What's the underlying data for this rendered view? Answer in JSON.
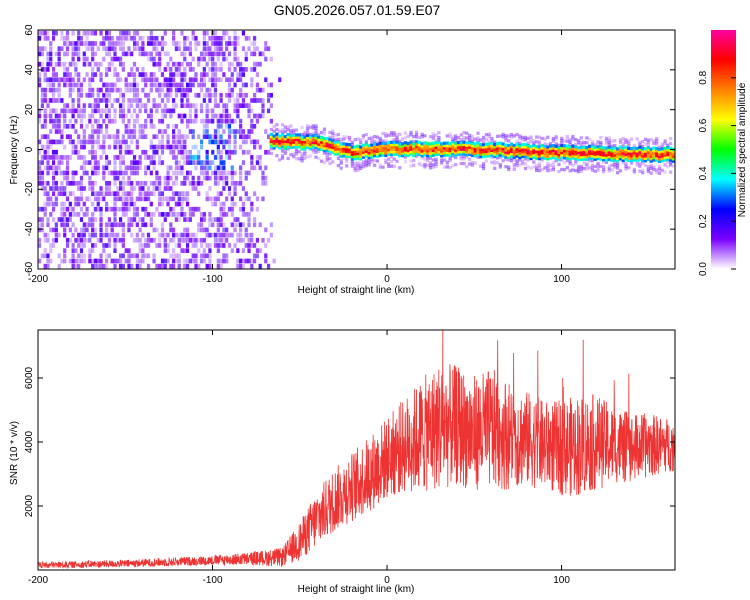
{
  "title": "GN05.2026.057.01.59.E07",
  "chart_data": [
    {
      "type": "heatmap",
      "xlabel": "Height of straight line (km)",
      "ylabel": "Frequency (Hz)",
      "xlim": [
        -200,
        165
      ],
      "ylim": [
        -60,
        60
      ],
      "xticks": [
        -200,
        -100,
        0,
        100
      ],
      "yticks": [
        -60,
        -40,
        -20,
        0,
        20,
        40,
        60
      ],
      "colorbar": {
        "label": "Normalized spectral amplitude",
        "range": [
          0,
          1
        ],
        "ticks": [
          0.0,
          0.2,
          0.4,
          0.6,
          0.8
        ],
        "tick_labels": [
          "0.0",
          "0.2",
          "0.4",
          "0.6",
          "0.8"
        ],
        "colors": [
          "#ffffff",
          "#7a00ff",
          "#0000ff",
          "#00ffff",
          "#00ff00",
          "#ffff00",
          "#ff8000",
          "#ff0000",
          "#ff00a0"
        ]
      },
      "regions": [
        {
          "description": "noise",
          "x_range": [
            -200,
            -62
          ],
          "freq_range": [
            -60,
            60
          ],
          "amplitude": 0.08
        },
        {
          "description": "signal band",
          "x_range": [
            -68,
            165
          ],
          "center_freq": [
            [
              -68,
              4
            ],
            [
              -40,
              3
            ],
            [
              -20,
              -2
            ],
            [
              0,
              0
            ],
            [
              40,
              0
            ],
            [
              100,
              -2
            ],
            [
              165,
              -3
            ]
          ],
          "amplitude": 0.95
        }
      ]
    },
    {
      "type": "line",
      "xlabel": "Height of straight line (km)",
      "ylabel": "SNR (10 * v/v)",
      "xlim": [
        -200,
        165
      ],
      "ylim": [
        0,
        7500
      ],
      "xticks": [
        -200,
        -100,
        0,
        100
      ],
      "yticks": [
        2000,
        4000,
        6000
      ],
      "series": [
        {
          "name": "SNR",
          "color": "#ee3333",
          "x": [
            -200,
            -150,
            -100,
            -80,
            -60,
            -50,
            -40,
            -30,
            -20,
            -10,
            0,
            10,
            20,
            30,
            40,
            50,
            60,
            70,
            80,
            90,
            100,
            110,
            120,
            130,
            140,
            150,
            165
          ],
          "mean": [
            150,
            200,
            300,
            350,
            400,
            900,
            1600,
            2200,
            2600,
            3000,
            3500,
            3900,
            4200,
            4500,
            4500,
            4300,
            4400,
            4200,
            4100,
            3900,
            3800,
            3900,
            4000,
            3900,
            3800,
            3900,
            3900
          ],
          "spread": [
            100,
            120,
            150,
            200,
            300,
            600,
            900,
            1000,
            1100,
            1200,
            1300,
            1500,
            1800,
            2000,
            1900,
            1800,
            1900,
            1700,
            1500,
            1400,
            1500,
            1600,
            1500,
            1200,
            1100,
            1000,
            800
          ],
          "peak_max": 7700
        }
      ]
    }
  ]
}
